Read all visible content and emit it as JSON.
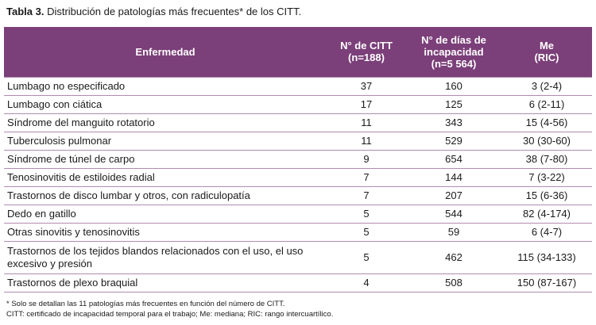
{
  "caption": {
    "label": "Tabla 3.",
    "text": "Distribución de patologías más frecuentes* de los CITT."
  },
  "table": {
    "headers": {
      "disease": "Enfermedad",
      "citt_line1": "N° de CITT",
      "citt_line2": "(n=188)",
      "days_line1": "N° de días de",
      "days_line2": "incapacidad",
      "days_line3": "(n=5 564)",
      "me_line1": "Me",
      "me_line2": "(RIC)"
    },
    "rows": [
      {
        "disease": "Lumbago no especificado",
        "citt": "37",
        "days": "160",
        "me": "3 (2-4)"
      },
      {
        "disease": "Lumbago con ciática",
        "citt": "17",
        "days": "125",
        "me": "6 (2-11)"
      },
      {
        "disease": "Síndrome del manguito rotatorio",
        "citt": "11",
        "days": "343",
        "me": "15 (4-56)"
      },
      {
        "disease": "Tuberculosis pulmonar",
        "citt": "11",
        "days": "529",
        "me": "30 (30-60)"
      },
      {
        "disease": "Síndrome de túnel de carpo",
        "citt": "9",
        "days": "654",
        "me": "38 (7-80)"
      },
      {
        "disease": "Tenosinovitis de estiloides radial",
        "citt": "7",
        "days": "144",
        "me": "7 (3-22)"
      },
      {
        "disease": "Trastornos de disco lumbar y otros, con radiculopatía",
        "citt": "7",
        "days": "207",
        "me": "15 (6-36)"
      },
      {
        "disease": "Dedo en gatillo",
        "citt": "5",
        "days": "544",
        "me": "82 (4-174)"
      },
      {
        "disease": "Otras sinovitis y tenosinovitis",
        "citt": "5",
        "days": "59",
        "me": "6 (4-7)"
      },
      {
        "disease": "Trastornos de los tejidos blandos relacionados con el uso, el uso excesivo y presión",
        "citt": "5",
        "days": "462",
        "me": "115 (34-133)"
      },
      {
        "disease": "Trastornos de plexo braquial",
        "citt": "4",
        "days": "508",
        "me": "150 (87-167)"
      }
    ]
  },
  "footnotes": {
    "line1": "* Solo se detallan las 11 patologías más frecuentes en función del número de CITT.",
    "line2": "CITT: certificado de incapacidad temporal para el trabajo; Me: mediana; RIC: rango intercuartílico."
  },
  "colors": {
    "header_bg": "#7b3f79",
    "header_text": "#ffffff",
    "row_divider": "#b08bb0"
  }
}
